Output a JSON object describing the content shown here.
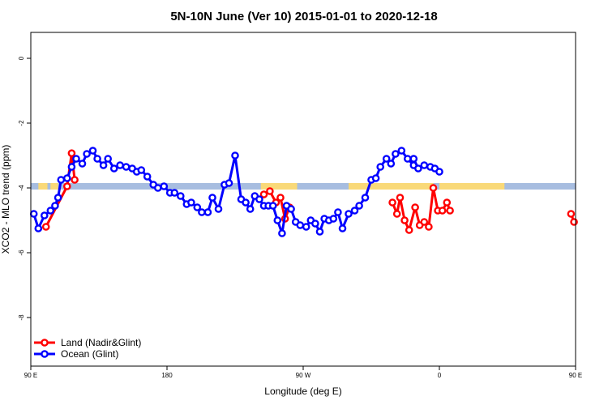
{
  "chart_data": {
    "type": "line",
    "title": "5N-10N June (Ver 10)   2015-01-01 to 2020-12-18",
    "xlabel": "Longitude (deg E)",
    "ylabel": "XCO2 - MLO trend (ppm)",
    "xlim": [
      90,
      450
    ],
    "ylim": [
      -9.5,
      0.8
    ],
    "xticks": [
      {
        "value": 90,
        "label": "90 E"
      },
      {
        "value": 180,
        "label": "180"
      },
      {
        "value": 270,
        "label": "90 W"
      },
      {
        "value": 360,
        "label": "0"
      },
      {
        "value": 450,
        "label": "90 E"
      },
      {
        "value": 540,
        "label": "180"
      }
    ],
    "yticks": [
      {
        "value": 0,
        "label": "0"
      },
      {
        "value": -2,
        "label": "-2"
      },
      {
        "value": -4,
        "label": "-4"
      },
      {
        "value": -6,
        "label": "-6"
      },
      {
        "value": -8,
        "label": "-8"
      }
    ],
    "xtick_values": [
      90,
      180,
      270,
      360,
      450,
      540
    ],
    "land_mask": {
      "y_bottom": -4.05,
      "y_top": -3.85,
      "ocean_color": "#a7bde0",
      "land_color": "#f9d978",
      "land_segments": [
        [
          95,
          101
        ],
        [
          103,
          108
        ],
        [
          242,
          266
        ],
        [
          300,
          356
        ],
        [
          360,
          403
        ],
        [
          490,
          495
        ],
        [
          505,
          513
        ],
        [
          600,
          605
        ],
        [
          607,
          611
        ]
      ]
    },
    "legend": {
      "position": "bottom-left",
      "entries": [
        {
          "name": "Land (Nadir&Glint)",
          "color": "#ff0000"
        },
        {
          "name": "Ocean (Glint)",
          "color": "#0000ff"
        }
      ]
    },
    "series": [
      {
        "name": "Land (Nadir&Glint)",
        "color": "#ff0000",
        "segments": [
          {
            "x": [
              100,
              114,
              117,
              119
            ],
            "y": [
              -5.2,
              -3.95,
              -2.93,
              -3.75
            ]
          },
          {
            "x": [
              244,
              248,
              252,
              255,
              258,
              261
            ],
            "y": [
              -4.2,
              -4.1,
              -4.45,
              -4.3,
              -4.95,
              -4.6
            ]
          },
          {
            "x": [
              329,
              332,
              334,
              337,
              340,
              344,
              347,
              350,
              353,
              356,
              359,
              362,
              365,
              367
            ],
            "y": [
              -4.45,
              -4.8,
              -4.3,
              -5.0,
              -5.3,
              -4.6,
              -5.15,
              -5.05,
              -5.2,
              -4.0,
              -4.7,
              -4.7,
              -4.45,
              -4.7
            ]
          },
          {
            "x": [
              447,
              449
            ],
            "y": [
              -4.8,
              -5.05
            ]
          },
          {
            "x": [
              477,
              480,
              483
            ],
            "y": [
              -5.2,
              -5.25,
              -5.2
            ]
          },
          {
            "x": [
              483,
              486,
              488
            ],
            "y": [
              -3.95,
              -3.75,
              -2.93
            ]
          }
        ]
      },
      {
        "name": "Ocean (Glint)",
        "color": "#0000ff",
        "segments": [
          {
            "x": [
              92,
              95,
              99,
              103,
              106,
              108,
              110,
              114,
              117,
              120,
              124,
              127,
              131,
              134,
              138,
              141,
              145,
              149,
              153,
              157,
              160,
              163,
              167,
              171,
              174,
              178,
              182,
              185,
              189,
              193,
              196,
              200,
              203,
              207,
              210,
              214,
              218,
              221,
              225,
              229,
              232,
              235,
              238,
              241,
              244,
              247,
              250,
              253,
              256,
              259,
              262,
              265,
              268,
              272,
              275,
              278,
              281,
              284,
              287,
              290,
              293,
              296,
              300,
              304,
              307,
              311,
              315,
              318,
              321,
              325,
              328,
              331,
              335,
              339,
              343
            ],
            "y": [
              -4.8,
              -5.25,
              -4.85,
              -4.7,
              -4.55,
              -4.3,
              -3.75,
              -3.7,
              -3.35,
              -3.1,
              -3.25,
              -2.95,
              -2.85,
              -3.1,
              -3.3,
              -3.1,
              -3.4,
              -3.3,
              -3.35,
              -3.4,
              -3.5,
              -3.45,
              -3.65,
              -3.9,
              -4.0,
              -3.95,
              -4.15,
              -4.15,
              -4.25,
              -4.5,
              -4.45,
              -4.6,
              -4.75,
              -4.75,
              -4.3,
              -4.65,
              -3.9,
              -3.85,
              -3.0,
              -4.35,
              -4.45,
              -4.65,
              -4.25,
              -4.35,
              -4.55,
              -4.55,
              -4.55,
              -5.0,
              -5.4,
              -4.55,
              -4.65,
              -5.05,
              -5.15,
              -5.2,
              -5.0,
              -5.1,
              -5.35,
              -4.95,
              -5.0,
              -4.95,
              -4.75,
              -5.25,
              -4.8,
              -4.7,
              -4.55,
              -4.3,
              -3.75,
              -3.7,
              -3.35,
              -3.1,
              -3.25,
              -2.95,
              -2.85,
              -3.1,
              -3.3
            ]
          },
          {
            "x": [
              343,
              346,
              350,
              354,
              357,
              360
            ],
            "y": [
              -3.1,
              -3.4,
              -3.3,
              -3.35,
              -3.4,
              -3.5
            ]
          }
        ]
      }
    ]
  }
}
